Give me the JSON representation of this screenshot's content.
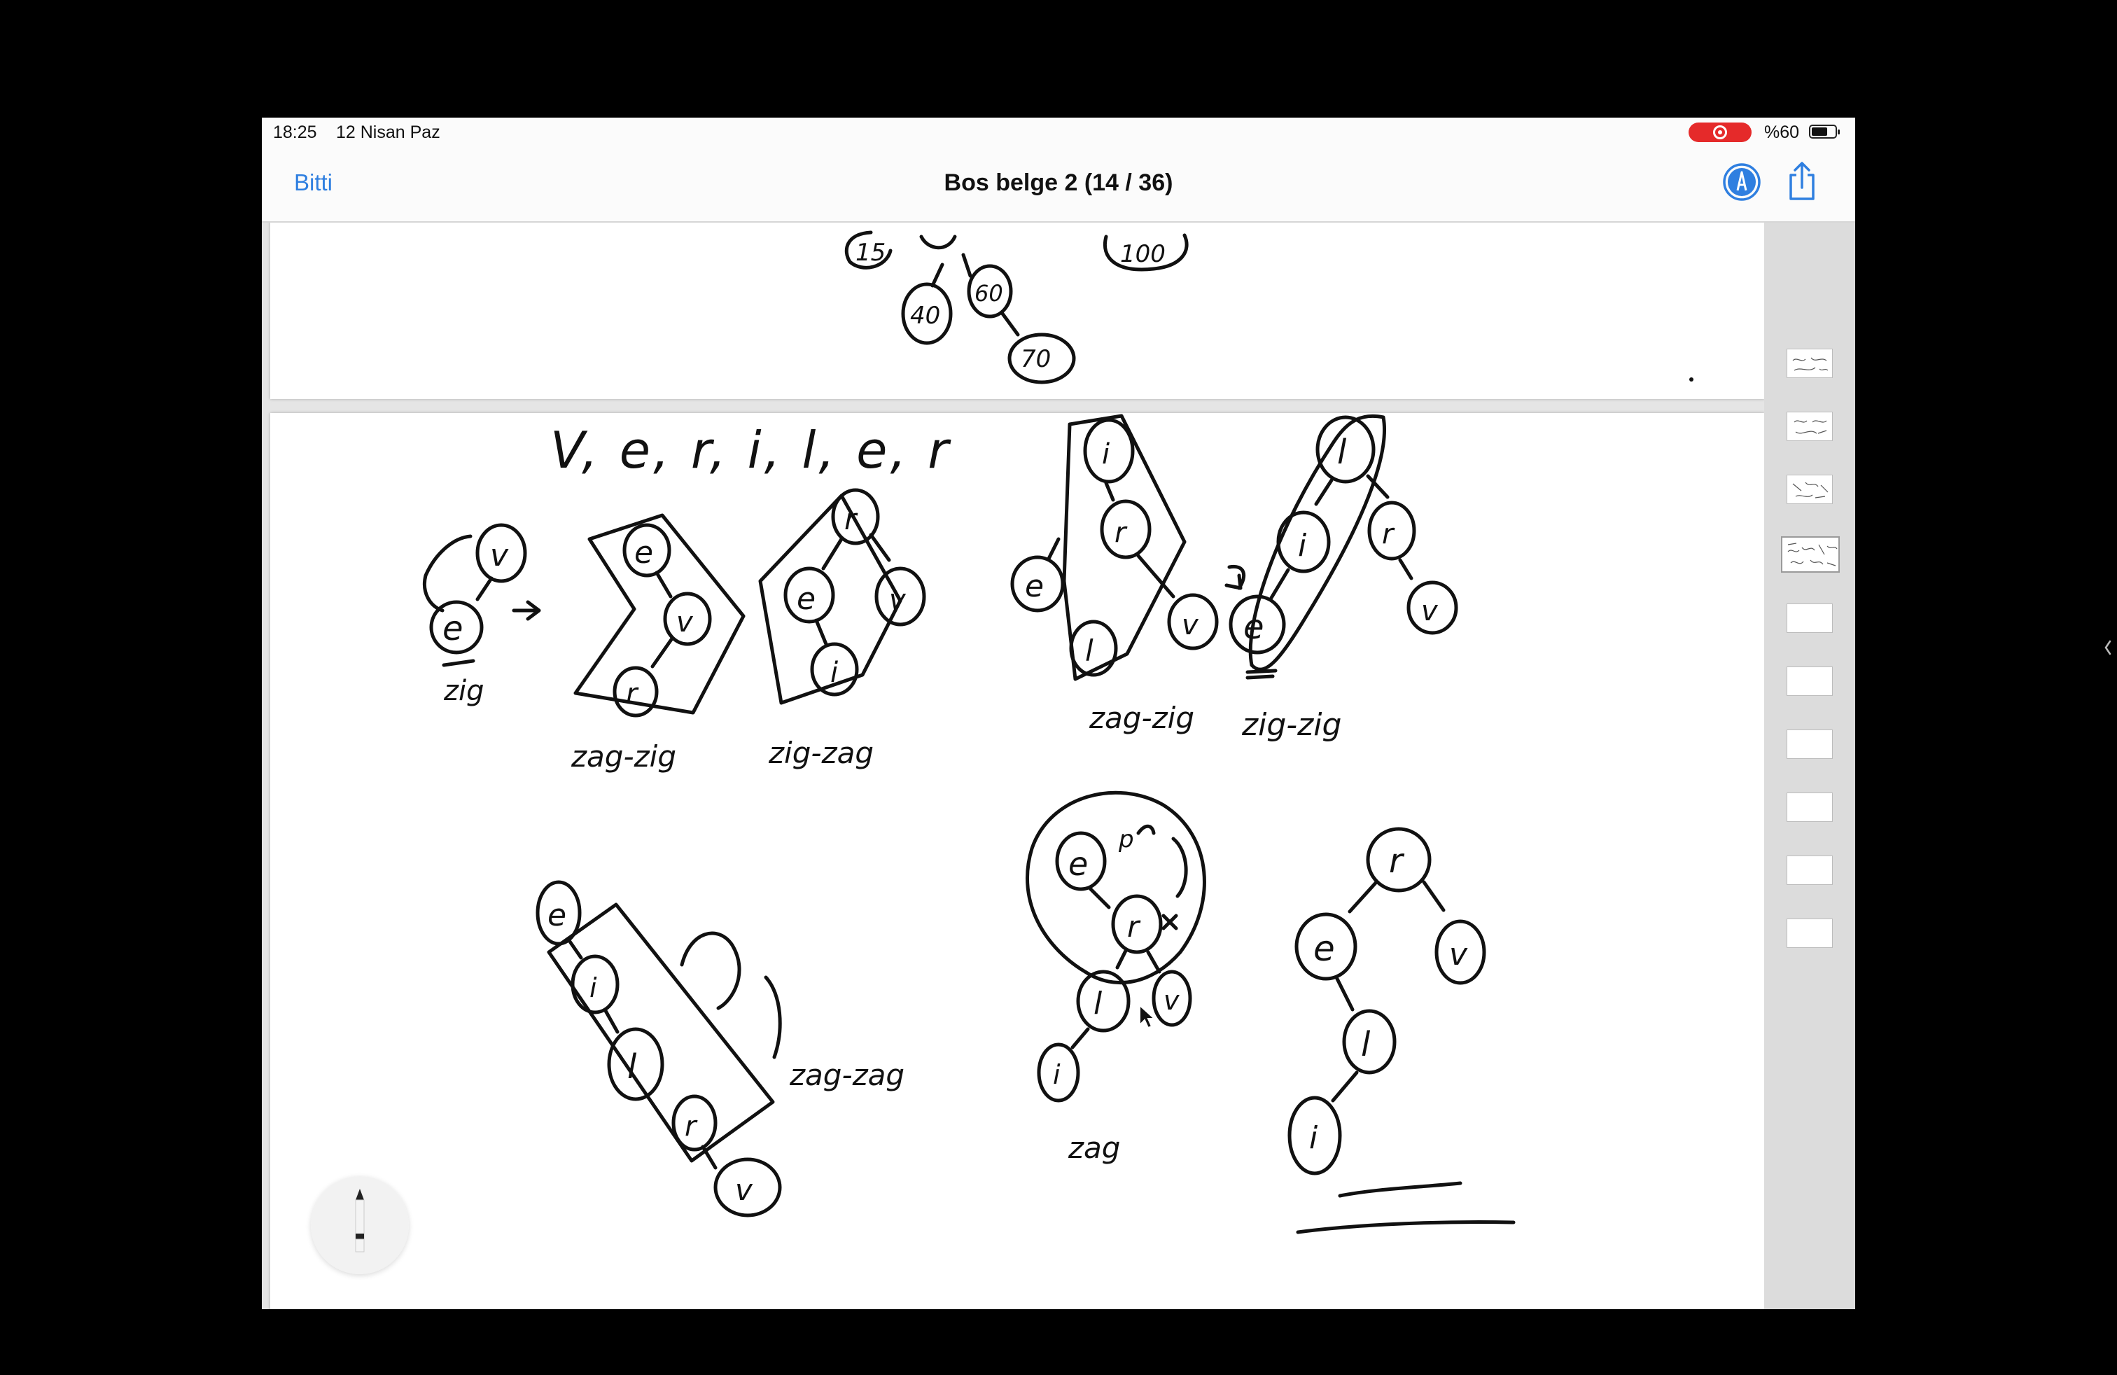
{
  "status_bar": {
    "time": "18:25",
    "date": "12 Nisan Paz",
    "battery_percent": "%60",
    "recording_color": "#e52a2a"
  },
  "nav_bar": {
    "done_label": "Bitti",
    "title": "Bos belge 2 (14 / 36)",
    "accent_color": "#2f7fe0",
    "markup_icon": "markup-pen-icon",
    "share_icon": "share-icon"
  },
  "sidebar": {
    "thumbnails": [
      {
        "state": "sketched"
      },
      {
        "state": "sketched"
      },
      {
        "state": "sketched"
      },
      {
        "state": "current"
      },
      {
        "state": "blank"
      },
      {
        "state": "blank"
      },
      {
        "state": "blank"
      },
      {
        "state": "blank"
      },
      {
        "state": "blank"
      },
      {
        "state": "blank"
      }
    ]
  },
  "page_top": {
    "nodes": [
      "15",
      "40",
      "60",
      "70",
      "100"
    ]
  },
  "page_main": {
    "header_sequence": "V, e, r, i, l, e, r",
    "labels": {
      "zig": "zig",
      "zag_zig_1": "zag-zig",
      "zig_zag": "zig-zag",
      "zag_zig_2": "zag-zig",
      "zig_zig": "zig-zig",
      "zag_zag": "zag-zag",
      "zag": "zag"
    },
    "node_letters": {
      "v": "v",
      "e": "e",
      "r": "r",
      "i": "i",
      "l": "l",
      "p": "p"
    },
    "ink_color": "#111111"
  },
  "tools": {
    "pencil_icon": "pencil-icon",
    "chevron_icon": "chevron-left-icon"
  }
}
